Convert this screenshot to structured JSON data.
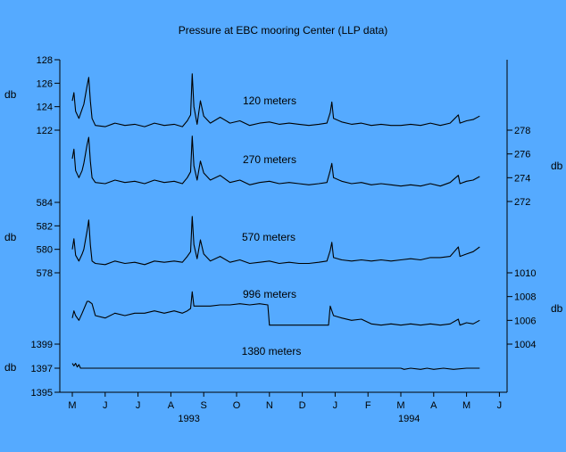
{
  "chart_data": {
    "type": "line",
    "title": "Pressure at EBC mooring Center (LLP data)",
    "unit_labels": {
      "left_top": "db",
      "left_mid": "db",
      "left_bottom": "db",
      "right_top": "db",
      "right_bottom": "db"
    },
    "x_axis": {
      "months": [
        "M",
        "J",
        "J",
        "A",
        "S",
        "O",
        "N",
        "D",
        "J",
        "F",
        "M",
        "A",
        "M",
        "J"
      ],
      "years": [
        "1993",
        "1994"
      ]
    },
    "axes": {
      "left_top": {
        "range": [
          122,
          128
        ],
        "ticks": [
          "122",
          "124",
          "126",
          "128"
        ]
      },
      "left_mid": {
        "range": [
          578,
          584
        ],
        "ticks": [
          "578",
          "580",
          "582",
          "584"
        ]
      },
      "left_bottom": {
        "range": [
          1395,
          1399
        ],
        "ticks": [
          "1395",
          "1397",
          "1399"
        ]
      },
      "right_top": {
        "range": [
          272,
          278
        ],
        "ticks": [
          "272",
          "274",
          "276",
          "278"
        ]
      },
      "right_bottom": {
        "range": [
          1004,
          1010
        ],
        "ticks": [
          "1004",
          "1006",
          "1008",
          "1010"
        ]
      }
    },
    "series": [
      {
        "name": "120 meters",
        "axis": "left_top",
        "values": [
          [
            0,
            124.5
          ],
          [
            0.05,
            125.2
          ],
          [
            0.1,
            123.6
          ],
          [
            0.2,
            123.0
          ],
          [
            0.3,
            123.8
          ],
          [
            0.35,
            124.2
          ],
          [
            0.45,
            125.8
          ],
          [
            0.5,
            126.5
          ],
          [
            0.55,
            124.5
          ],
          [
            0.6,
            123.0
          ],
          [
            0.7,
            122.4
          ],
          [
            1.0,
            122.3
          ],
          [
            1.3,
            122.6
          ],
          [
            1.6,
            122.4
          ],
          [
            1.9,
            122.5
          ],
          [
            2.2,
            122.3
          ],
          [
            2.5,
            122.6
          ],
          [
            2.8,
            122.4
          ],
          [
            3.1,
            122.5
          ],
          [
            3.35,
            122.3
          ],
          [
            3.5,
            122.8
          ],
          [
            3.6,
            123.3
          ],
          [
            3.65,
            126.8
          ],
          [
            3.7,
            124.0
          ],
          [
            3.8,
            122.5
          ],
          [
            3.9,
            124.5
          ],
          [
            4.0,
            123.2
          ],
          [
            4.2,
            122.6
          ],
          [
            4.5,
            123.1
          ],
          [
            4.8,
            122.6
          ],
          [
            5.1,
            122.8
          ],
          [
            5.4,
            122.4
          ],
          [
            5.7,
            122.6
          ],
          [
            6.0,
            122.7
          ],
          [
            6.3,
            122.5
          ],
          [
            6.6,
            122.6
          ],
          [
            6.9,
            122.5
          ],
          [
            7.2,
            122.4
          ],
          [
            7.5,
            122.5
          ],
          [
            7.75,
            122.6
          ],
          [
            7.85,
            123.5
          ],
          [
            7.9,
            124.4
          ],
          [
            7.95,
            123.0
          ],
          [
            8.2,
            122.7
          ],
          [
            8.5,
            122.5
          ],
          [
            8.8,
            122.6
          ],
          [
            9.1,
            122.4
          ],
          [
            9.4,
            122.5
          ],
          [
            9.7,
            122.4
          ],
          [
            10.0,
            122.4
          ],
          [
            10.3,
            122.5
          ],
          [
            10.6,
            122.4
          ],
          [
            10.9,
            122.6
          ],
          [
            11.2,
            122.4
          ],
          [
            11.5,
            122.6
          ],
          [
            11.75,
            123.3
          ],
          [
            11.8,
            122.6
          ],
          [
            12.0,
            122.8
          ],
          [
            12.2,
            122.9
          ],
          [
            12.4,
            123.2
          ]
        ]
      },
      {
        "name": "270 meters",
        "axis": "right_top",
        "values": [
          [
            0,
            275.6
          ],
          [
            0.05,
            276.4
          ],
          [
            0.1,
            274.6
          ],
          [
            0.2,
            274.0
          ],
          [
            0.3,
            274.6
          ],
          [
            0.35,
            275.2
          ],
          [
            0.45,
            276.8
          ],
          [
            0.5,
            277.4
          ],
          [
            0.55,
            275.4
          ],
          [
            0.6,
            274.0
          ],
          [
            0.7,
            273.6
          ],
          [
            1.0,
            273.5
          ],
          [
            1.3,
            273.8
          ],
          [
            1.6,
            273.6
          ],
          [
            1.9,
            273.7
          ],
          [
            2.2,
            273.5
          ],
          [
            2.5,
            273.8
          ],
          [
            2.8,
            273.6
          ],
          [
            3.1,
            273.7
          ],
          [
            3.35,
            273.5
          ],
          [
            3.5,
            274.0
          ],
          [
            3.6,
            274.5
          ],
          [
            3.65,
            277.5
          ],
          [
            3.7,
            275.0
          ],
          [
            3.8,
            273.8
          ],
          [
            3.9,
            275.4
          ],
          [
            4.0,
            274.4
          ],
          [
            4.2,
            273.8
          ],
          [
            4.5,
            274.2
          ],
          [
            4.8,
            273.6
          ],
          [
            5.1,
            273.8
          ],
          [
            5.4,
            273.4
          ],
          [
            5.7,
            273.6
          ],
          [
            6.0,
            273.7
          ],
          [
            6.3,
            273.5
          ],
          [
            6.6,
            273.6
          ],
          [
            6.9,
            273.5
          ],
          [
            7.2,
            273.4
          ],
          [
            7.5,
            273.5
          ],
          [
            7.75,
            273.6
          ],
          [
            7.85,
            274.6
          ],
          [
            7.9,
            275.2
          ],
          [
            7.95,
            274.0
          ],
          [
            8.2,
            273.7
          ],
          [
            8.5,
            273.5
          ],
          [
            8.8,
            273.6
          ],
          [
            9.1,
            273.4
          ],
          [
            9.4,
            273.5
          ],
          [
            9.7,
            273.4
          ],
          [
            10.0,
            273.3
          ],
          [
            10.3,
            273.4
          ],
          [
            10.6,
            273.3
          ],
          [
            10.9,
            273.5
          ],
          [
            11.2,
            273.3
          ],
          [
            11.5,
            273.6
          ],
          [
            11.75,
            274.2
          ],
          [
            11.8,
            273.5
          ],
          [
            12.0,
            273.7
          ],
          [
            12.2,
            273.8
          ],
          [
            12.4,
            274.1
          ]
        ]
      },
      {
        "name": "570 meters",
        "axis": "left_mid",
        "values": [
          [
            0,
            580.0
          ],
          [
            0.05,
            580.9
          ],
          [
            0.1,
            579.5
          ],
          [
            0.2,
            579.0
          ],
          [
            0.3,
            579.6
          ],
          [
            0.35,
            580.0
          ],
          [
            0.45,
            581.6
          ],
          [
            0.5,
            582.5
          ],
          [
            0.55,
            580.4
          ],
          [
            0.6,
            579.0
          ],
          [
            0.7,
            578.8
          ],
          [
            1.0,
            578.7
          ],
          [
            1.3,
            579.0
          ],
          [
            1.6,
            578.8
          ],
          [
            1.9,
            578.9
          ],
          [
            2.2,
            578.7
          ],
          [
            2.5,
            579.0
          ],
          [
            2.8,
            578.9
          ],
          [
            3.1,
            579.0
          ],
          [
            3.35,
            578.9
          ],
          [
            3.5,
            579.4
          ],
          [
            3.6,
            579.8
          ],
          [
            3.65,
            582.8
          ],
          [
            3.7,
            580.4
          ],
          [
            3.8,
            579.2
          ],
          [
            3.9,
            580.8
          ],
          [
            4.0,
            579.6
          ],
          [
            4.2,
            579.0
          ],
          [
            4.5,
            579.4
          ],
          [
            4.8,
            578.9
          ],
          [
            5.1,
            579.1
          ],
          [
            5.4,
            578.8
          ],
          [
            5.7,
            578.9
          ],
          [
            6.0,
            579.0
          ],
          [
            6.3,
            578.8
          ],
          [
            6.6,
            578.9
          ],
          [
            6.9,
            578.8
          ],
          [
            7.2,
            578.8
          ],
          [
            7.5,
            578.9
          ],
          [
            7.75,
            579.0
          ],
          [
            7.85,
            579.9
          ],
          [
            7.9,
            580.6
          ],
          [
            7.95,
            579.3
          ],
          [
            8.2,
            579.1
          ],
          [
            8.5,
            579.0
          ],
          [
            8.8,
            579.1
          ],
          [
            9.1,
            579.0
          ],
          [
            9.4,
            579.1
          ],
          [
            9.7,
            579.0
          ],
          [
            10.0,
            579.1
          ],
          [
            10.3,
            579.2
          ],
          [
            10.6,
            579.1
          ],
          [
            10.9,
            579.3
          ],
          [
            11.2,
            579.3
          ],
          [
            11.5,
            579.4
          ],
          [
            11.75,
            580.2
          ],
          [
            11.8,
            579.4
          ],
          [
            12.0,
            579.6
          ],
          [
            12.2,
            579.8
          ],
          [
            12.4,
            580.2
          ]
        ]
      },
      {
        "name": "996 meters",
        "axis": "right_bottom",
        "values": [
          [
            0,
            1006.2
          ],
          [
            0.05,
            1006.8
          ],
          [
            0.1,
            1006.4
          ],
          [
            0.2,
            1006.0
          ],
          [
            0.3,
            1006.6
          ],
          [
            0.45,
            1007.6
          ],
          [
            0.5,
            1007.6
          ],
          [
            0.6,
            1007.4
          ],
          [
            0.7,
            1006.4
          ],
          [
            1.0,
            1006.2
          ],
          [
            1.3,
            1006.6
          ],
          [
            1.6,
            1006.4
          ],
          [
            1.9,
            1006.6
          ],
          [
            2.2,
            1006.6
          ],
          [
            2.5,
            1006.8
          ],
          [
            2.8,
            1006.6
          ],
          [
            3.1,
            1006.8
          ],
          [
            3.35,
            1006.6
          ],
          [
            3.5,
            1006.8
          ],
          [
            3.6,
            1007.0
          ],
          [
            3.65,
            1008.4
          ],
          [
            3.7,
            1007.2
          ],
          [
            3.9,
            1007.2
          ],
          [
            4.2,
            1007.2
          ],
          [
            4.5,
            1007.3
          ],
          [
            4.8,
            1007.3
          ],
          [
            5.1,
            1007.4
          ],
          [
            5.4,
            1007.3
          ],
          [
            5.7,
            1007.4
          ],
          [
            5.95,
            1007.3
          ],
          [
            6.0,
            1005.6
          ],
          [
            6.3,
            1005.6
          ],
          [
            6.9,
            1005.6
          ],
          [
            7.5,
            1005.6
          ],
          [
            7.8,
            1005.6
          ],
          [
            7.85,
            1007.2
          ],
          [
            7.95,
            1006.4
          ],
          [
            8.2,
            1006.2
          ],
          [
            8.5,
            1006.0
          ],
          [
            8.8,
            1006.1
          ],
          [
            9.1,
            1005.7
          ],
          [
            9.4,
            1005.6
          ],
          [
            9.7,
            1005.7
          ],
          [
            10.0,
            1005.6
          ],
          [
            10.3,
            1005.7
          ],
          [
            10.6,
            1005.6
          ],
          [
            10.9,
            1005.7
          ],
          [
            11.2,
            1005.6
          ],
          [
            11.5,
            1005.7
          ],
          [
            11.75,
            1006.1
          ],
          [
            11.8,
            1005.6
          ],
          [
            12.0,
            1005.8
          ],
          [
            12.2,
            1005.7
          ],
          [
            12.4,
            1006.0
          ]
        ]
      },
      {
        "name": "1380 meters",
        "axis": "left_bottom",
        "values": [
          [
            0,
            1397.4
          ],
          [
            0.05,
            1397.2
          ],
          [
            0.1,
            1397.4
          ],
          [
            0.15,
            1397.1
          ],
          [
            0.2,
            1397.3
          ],
          [
            0.25,
            1397.0
          ],
          [
            0.5,
            1397.0
          ],
          [
            1.0,
            1397.0
          ],
          [
            2.0,
            1397.0
          ],
          [
            3.0,
            1397.0
          ],
          [
            4.0,
            1397.0
          ],
          [
            5.0,
            1397.0
          ],
          [
            6.0,
            1397.0
          ],
          [
            7.0,
            1397.0
          ],
          [
            8.0,
            1397.0
          ],
          [
            9.0,
            1397.0
          ],
          [
            10.0,
            1397.0
          ],
          [
            10.1,
            1396.9
          ],
          [
            10.3,
            1397.0
          ],
          [
            10.6,
            1396.9
          ],
          [
            10.8,
            1397.0
          ],
          [
            11.0,
            1396.9
          ],
          [
            11.3,
            1397.0
          ],
          [
            11.6,
            1396.9
          ],
          [
            12.0,
            1397.0
          ],
          [
            12.4,
            1397.0
          ]
        ]
      }
    ],
    "grid": false,
    "legend": "none"
  }
}
